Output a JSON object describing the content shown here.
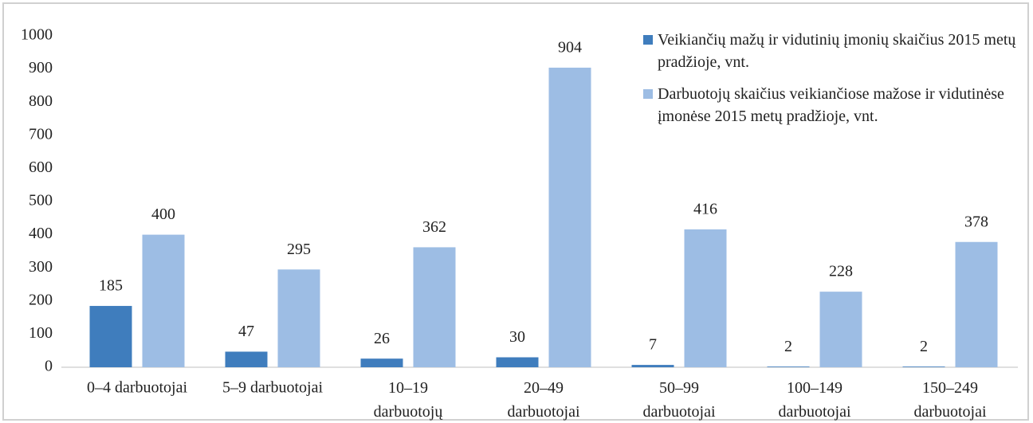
{
  "chart_data": {
    "type": "bar",
    "categories": [
      "0–4 darbuotojai",
      "5–9 darbuotojai",
      "10–19 darbuotojų",
      "20–49 darbuotojai",
      "50–99 darbuotojai",
      "100–149 darbuotojai",
      "150–249 darbuotojai"
    ],
    "series": [
      {
        "name": "Veikiančių mažų ir vidutinių įmonių skaičius 2015 metų pradžioje, vnt.",
        "color": "#3f7dbd",
        "values": [
          185,
          47,
          26,
          30,
          7,
          2,
          2
        ]
      },
      {
        "name": "Darbuotojų skaičius veikiančiose mažose ir vidutinėse įmonėse 2015 metų pradžioje, vnt.",
        "color": "#9dbde4",
        "values": [
          400,
          295,
          362,
          904,
          416,
          228,
          378
        ]
      }
    ],
    "ylim": [
      0,
      1000
    ],
    "yticks": [
      0,
      100,
      200,
      300,
      400,
      500,
      600,
      700,
      800,
      900,
      1000
    ],
    "grid": false,
    "legend": "top-right"
  }
}
